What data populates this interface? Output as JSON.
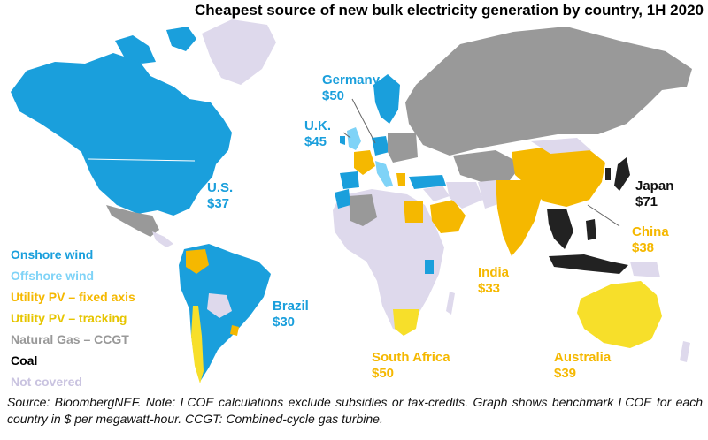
{
  "title": "Cheapest source of new bulk electricity generation by country, 1H 2020",
  "colors": {
    "onshore_wind": "#1a9fdc",
    "offshore_wind": "#7fd3f7",
    "pv_fixed": "#f5b800",
    "pv_tracking": "#f7df2a",
    "natural_gas": "#999999",
    "coal": "#222222",
    "not_covered": "#ded9ec"
  },
  "legend": [
    {
      "label": "Onshore wind",
      "color": "#1a9fdc"
    },
    {
      "label": "Offshore wind",
      "color": "#7fd3f7"
    },
    {
      "label": "Utility PV – fixed axis",
      "color": "#f5b800"
    },
    {
      "label": "Utility PV – tracking",
      "color": "#e6c500"
    },
    {
      "label": "Natural Gas – CCGT",
      "color": "#999999"
    },
    {
      "label": "Coal",
      "color": "#000000"
    },
    {
      "label": "Not covered",
      "color": "#c9c3e0"
    }
  ],
  "countries": {
    "germany": {
      "name": "Germany",
      "value": "$50"
    },
    "uk": {
      "name": "U.K.",
      "value": "$45"
    },
    "us": {
      "name": "U.S.",
      "value": "$37"
    },
    "japan": {
      "name": "Japan",
      "value": "$71"
    },
    "china": {
      "name": "China",
      "value": "$38"
    },
    "india": {
      "name": "India",
      "value": "$33"
    },
    "brazil": {
      "name": "Brazil",
      "value": "$30"
    },
    "south_africa": {
      "name": "South Africa",
      "value": "$50"
    },
    "australia": {
      "name": "Australia",
      "value": "$39"
    }
  },
  "source": "Source: BloombergNEF. Note: LCOE calculations exclude subsidies or tax-credits. Graph shows benchmark LCOE for each country in $ per megawatt-hour. CCGT: Combined-cycle gas turbine."
}
